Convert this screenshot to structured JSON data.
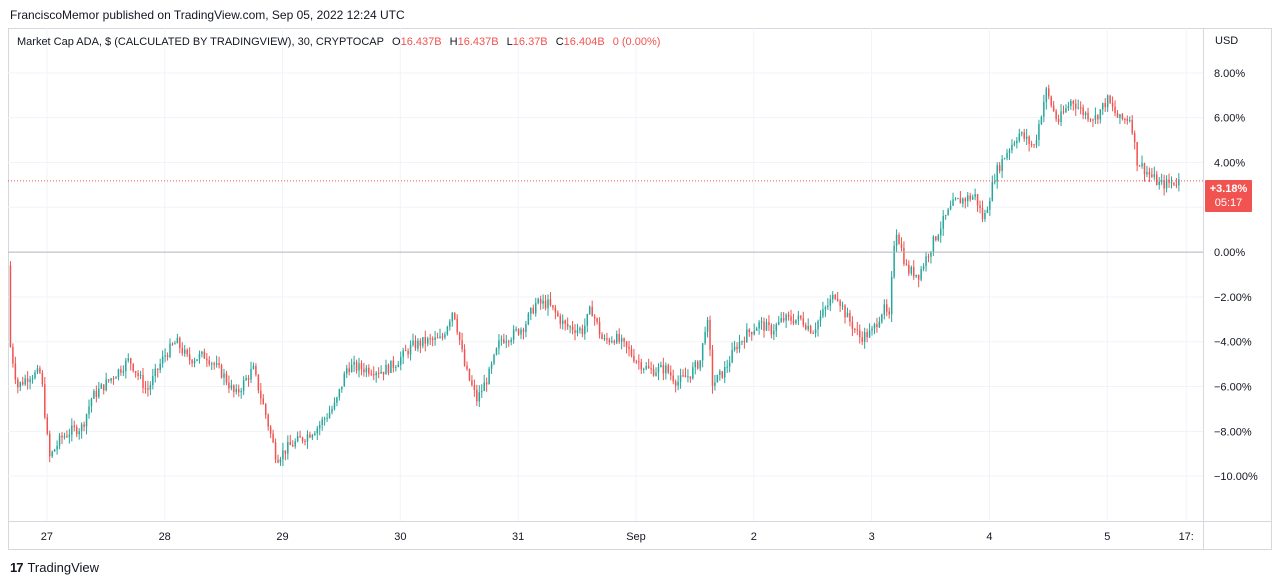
{
  "header": {
    "publish_line": "FranciscoMemor published on TradingView.com, Sep 05, 2022 12:24 UTC"
  },
  "legend": {
    "symbol": "Market Cap ADA, $ (CALCULATED BY TRADINGVIEW), 30, CRYPTOCAP",
    "open_label": "O",
    "open_value": "16.437B",
    "high_label": "H",
    "high_value": "16.437B",
    "low_label": "L",
    "low_value": "16.37B",
    "close_label": "C",
    "close_value": "16.404B",
    "change": "0 (0.00%)"
  },
  "price_axis": {
    "currency": "USD",
    "last_value": "+3.18%",
    "countdown": "05:17"
  },
  "footer": {
    "brand_mark": "17",
    "brand_name": "TradingView"
  },
  "colors": {
    "up": "#26a69a",
    "down": "#ef5350",
    "grid": "#f0f3fa",
    "zero_line": "#b2b5be",
    "price_line": "#f05350"
  },
  "chart_data": {
    "type": "candlestick",
    "interval": "30",
    "y_unit": "%",
    "ylim": [
      -12,
      10
    ],
    "y_ticks": [
      8,
      6,
      4,
      2,
      0,
      -2,
      -4,
      -6,
      -8,
      -10
    ],
    "y_tick_labels": [
      "8.00%",
      "6.00%",
      "4.00%",
      "2.00%",
      "0.00%",
      "−2.00%",
      "−4.00%",
      "−6.00%",
      "−8.00%",
      "−10.00%"
    ],
    "x_tick_labels": [
      "27",
      "28",
      "29",
      "30",
      "31",
      "Sep",
      "2",
      "3",
      "4",
      "5",
      "17:"
    ],
    "x_tick_days": [
      1,
      2,
      3,
      4,
      5,
      6,
      7,
      8,
      9,
      10,
      10.67
    ],
    "x_start_day": 0.67,
    "x_end_day": 10.77,
    "last_value": 3.18,
    "zero_line": 0,
    "grid": true,
    "price_path": [
      [
        0.67,
        -0.6
      ],
      [
        0.69,
        -4.2
      ],
      [
        0.75,
        -6.0
      ],
      [
        0.85,
        -5.5
      ],
      [
        0.95,
        -5.4
      ],
      [
        1.02,
        -9.2
      ],
      [
        1.12,
        -8.3
      ],
      [
        1.2,
        -8.0
      ],
      [
        1.3,
        -7.8
      ],
      [
        1.38,
        -6.5
      ],
      [
        1.55,
        -5.6
      ],
      [
        1.7,
        -4.8
      ],
      [
        1.85,
        -6.2
      ],
      [
        2.0,
        -4.6
      ],
      [
        2.1,
        -4.0
      ],
      [
        2.2,
        -4.8
      ],
      [
        2.35,
        -4.6
      ],
      [
        2.5,
        -5.5
      ],
      [
        2.6,
        -6.4
      ],
      [
        2.75,
        -5.2
      ],
      [
        2.85,
        -7.1
      ],
      [
        2.95,
        -9.2
      ],
      [
        3.05,
        -8.7
      ],
      [
        3.2,
        -8.2
      ],
      [
        3.3,
        -7.8
      ],
      [
        3.45,
        -6.8
      ],
      [
        3.55,
        -5.1
      ],
      [
        3.7,
        -5.2
      ],
      [
        3.85,
        -5.3
      ],
      [
        3.95,
        -5.0
      ],
      [
        4.1,
        -4.2
      ],
      [
        4.2,
        -4.0
      ],
      [
        4.35,
        -3.9
      ],
      [
        4.45,
        -2.5
      ],
      [
        4.55,
        -5.2
      ],
      [
        4.65,
        -6.6
      ],
      [
        4.75,
        -5.5
      ],
      [
        4.85,
        -3.9
      ],
      [
        4.95,
        -3.7
      ],
      [
        5.05,
        -3.3
      ],
      [
        5.15,
        -2.3
      ],
      [
        5.25,
        -2.3
      ],
      [
        5.4,
        -3.3
      ],
      [
        5.55,
        -3.5
      ],
      [
        5.62,
        -2.5
      ],
      [
        5.72,
        -4.0
      ],
      [
        5.82,
        -3.8
      ],
      [
        5.92,
        -4.3
      ],
      [
        6.02,
        -4.9
      ],
      [
        6.12,
        -5.3
      ],
      [
        6.25,
        -5.2
      ],
      [
        6.35,
        -5.8
      ],
      [
        6.45,
        -5.5
      ],
      [
        6.55,
        -4.8
      ],
      [
        6.6,
        -2.8
      ],
      [
        6.65,
        -5.9
      ],
      [
        6.75,
        -5.3
      ],
      [
        6.85,
        -4.2
      ],
      [
        6.95,
        -3.6
      ],
      [
        7.05,
        -3.2
      ],
      [
        7.15,
        -3.5
      ],
      [
        7.25,
        -3.0
      ],
      [
        7.4,
        -3.0
      ],
      [
        7.5,
        -3.5
      ],
      [
        7.6,
        -2.6
      ],
      [
        7.7,
        -1.8
      ],
      [
        7.78,
        -2.8
      ],
      [
        7.9,
        -3.8
      ],
      [
        8.0,
        -3.6
      ],
      [
        8.1,
        -2.5
      ],
      [
        8.15,
        -3.0
      ],
      [
        8.2,
        1.2
      ],
      [
        8.3,
        -0.8
      ],
      [
        8.4,
        -1.0
      ],
      [
        8.5,
        0.2
      ],
      [
        8.6,
        1.3
      ],
      [
        8.7,
        2.2
      ],
      [
        8.8,
        2.4
      ],
      [
        8.88,
        2.5
      ],
      [
        8.95,
        1.4
      ],
      [
        9.05,
        3.5
      ],
      [
        9.15,
        4.5
      ],
      [
        9.25,
        5.3
      ],
      [
        9.38,
        4.7
      ],
      [
        9.48,
        7.2
      ],
      [
        9.58,
        5.8
      ],
      [
        9.7,
        6.8
      ],
      [
        9.8,
        6.2
      ],
      [
        9.9,
        6.0
      ],
      [
        10.0,
        6.8
      ],
      [
        10.1,
        5.9
      ],
      [
        10.2,
        6.0
      ],
      [
        10.25,
        4.1
      ],
      [
        10.35,
        3.5
      ],
      [
        10.45,
        3.0
      ],
      [
        10.55,
        3.1
      ],
      [
        10.62,
        3.18
      ]
    ]
  }
}
